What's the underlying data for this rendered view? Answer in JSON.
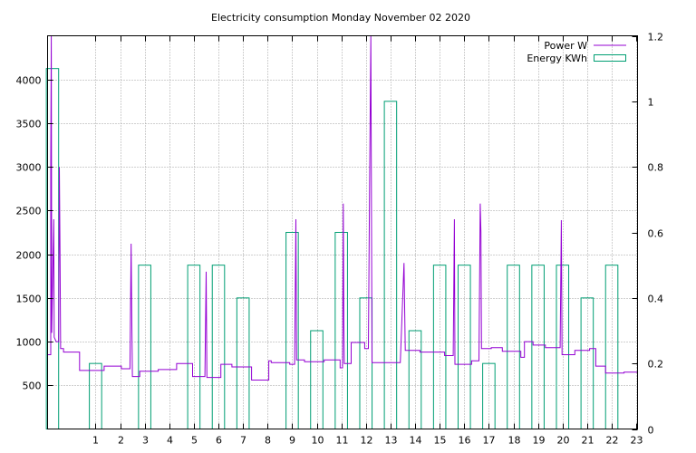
{
  "chart_data": {
    "type": "line",
    "title": "Electricity consumption Monday November 02 2020",
    "xlim": [
      -0.95,
      23.05
    ],
    "x_ticks": [
      1,
      2,
      3,
      4,
      5,
      6,
      7,
      8,
      9,
      10,
      11,
      12,
      13,
      14,
      15,
      16,
      17,
      18,
      19,
      20,
      21,
      22,
      23
    ],
    "y_left": {
      "ylim": [
        0,
        4500
      ],
      "ticks": [
        500,
        1000,
        1500,
        2000,
        2500,
        3000,
        3500,
        4000
      ]
    },
    "y_right": {
      "ylim": [
        0,
        1.2
      ],
      "ticks": [
        0,
        0.2,
        0.4,
        0.6,
        0.8,
        1,
        1.2
      ]
    },
    "grid": true,
    "legend_position": "top-right",
    "colors": {
      "power": "#9400d3",
      "energy": "#009e73",
      "grid": "#a0a0a0"
    },
    "series": [
      {
        "name": "Energy KWh",
        "axis": "right",
        "style": "boxes",
        "box_width": 0.5,
        "points": [
          [
            -0.75,
            1.1
          ],
          [
            1,
            0.2
          ],
          [
            3,
            0.5
          ],
          [
            5,
            0.5
          ],
          [
            6,
            0.5
          ],
          [
            7,
            0.4
          ],
          [
            9,
            0.6
          ],
          [
            10,
            0.3
          ],
          [
            11,
            0.6
          ],
          [
            12,
            0.4
          ],
          [
            13,
            1.0
          ],
          [
            14,
            0.3
          ],
          [
            15,
            0.5
          ],
          [
            16,
            0.5
          ],
          [
            17,
            0.2
          ],
          [
            18,
            0.5
          ],
          [
            19,
            0.5
          ],
          [
            20,
            0.5
          ],
          [
            21,
            0.4
          ],
          [
            22,
            0.5
          ]
        ]
      },
      {
        "name": "Power W",
        "axis": "left",
        "style": "steps",
        "points": [
          [
            -0.95,
            850
          ],
          [
            -0.82,
            850
          ],
          [
            -0.82,
            3050
          ],
          [
            -0.8,
            4500
          ],
          [
            -0.78,
            1100
          ],
          [
            -0.7,
            2400
          ],
          [
            -0.68,
            1050
          ],
          [
            -0.6,
            1000
          ],
          [
            -0.5,
            1000
          ],
          [
            -0.47,
            3000
          ],
          [
            -0.44,
            1900
          ],
          [
            -0.42,
            920
          ],
          [
            -0.3,
            920
          ],
          [
            -0.3,
            880
          ],
          [
            0.35,
            880
          ],
          [
            0.35,
            670
          ],
          [
            1.35,
            670
          ],
          [
            1.35,
            720
          ],
          [
            2.05,
            720
          ],
          [
            2.05,
            690
          ],
          [
            2.4,
            690
          ],
          [
            2.45,
            2120
          ],
          [
            2.47,
            1380
          ],
          [
            2.5,
            600
          ],
          [
            2.8,
            600
          ],
          [
            2.8,
            660
          ],
          [
            3.55,
            660
          ],
          [
            3.55,
            680
          ],
          [
            4.3,
            680
          ],
          [
            4.3,
            750
          ],
          [
            4.95,
            750
          ],
          [
            4.95,
            600
          ],
          [
            5.45,
            600
          ],
          [
            5.5,
            1800
          ],
          [
            5.53,
            590
          ],
          [
            6.1,
            590
          ],
          [
            6.1,
            740
          ],
          [
            6.55,
            740
          ],
          [
            6.55,
            710
          ],
          [
            7.35,
            710
          ],
          [
            7.35,
            560
          ],
          [
            8.05,
            560
          ],
          [
            8.05,
            780
          ],
          [
            8.15,
            780
          ],
          [
            8.15,
            760
          ],
          [
            8.9,
            760
          ],
          [
            8.9,
            740
          ],
          [
            9.1,
            740
          ],
          [
            9.15,
            2400
          ],
          [
            9.18,
            790
          ],
          [
            9.5,
            790
          ],
          [
            9.5,
            770
          ],
          [
            10.3,
            770
          ],
          [
            10.3,
            790
          ],
          [
            10.95,
            790
          ],
          [
            10.95,
            700
          ],
          [
            11.05,
            700
          ],
          [
            11.08,
            2580
          ],
          [
            11.1,
            1250
          ],
          [
            11.12,
            750
          ],
          [
            11.4,
            750
          ],
          [
            11.4,
            990
          ],
          [
            11.95,
            990
          ],
          [
            11.95,
            920
          ],
          [
            12.1,
            920
          ],
          [
            12.15,
            2780
          ],
          [
            12.2,
            4500
          ],
          [
            12.25,
            760
          ],
          [
            13.4,
            760
          ],
          [
            13.55,
            1900
          ],
          [
            13.6,
            900
          ],
          [
            14.2,
            900
          ],
          [
            14.2,
            880
          ],
          [
            15.2,
            880
          ],
          [
            15.2,
            840
          ],
          [
            15.55,
            840
          ],
          [
            15.6,
            2400
          ],
          [
            15.62,
            740
          ],
          [
            16.3,
            740
          ],
          [
            16.3,
            780
          ],
          [
            16.6,
            780
          ],
          [
            16.65,
            2580
          ],
          [
            16.68,
            2250
          ],
          [
            16.7,
            920
          ],
          [
            17.1,
            920
          ],
          [
            17.1,
            930
          ],
          [
            17.55,
            930
          ],
          [
            17.55,
            890
          ],
          [
            18.3,
            890
          ],
          [
            18.3,
            820
          ],
          [
            18.45,
            820
          ],
          [
            18.45,
            1000
          ],
          [
            18.8,
            1000
          ],
          [
            18.8,
            960
          ],
          [
            19.3,
            960
          ],
          [
            19.3,
            930
          ],
          [
            19.9,
            930
          ],
          [
            19.95,
            2390
          ],
          [
            19.98,
            850
          ],
          [
            20.5,
            850
          ],
          [
            20.5,
            900
          ],
          [
            21.1,
            900
          ],
          [
            21.1,
            920
          ],
          [
            21.35,
            920
          ],
          [
            21.35,
            720
          ],
          [
            21.75,
            720
          ],
          [
            21.75,
            640
          ],
          [
            22.5,
            640
          ],
          [
            22.5,
            650
          ],
          [
            23.05,
            650
          ]
        ]
      }
    ]
  }
}
